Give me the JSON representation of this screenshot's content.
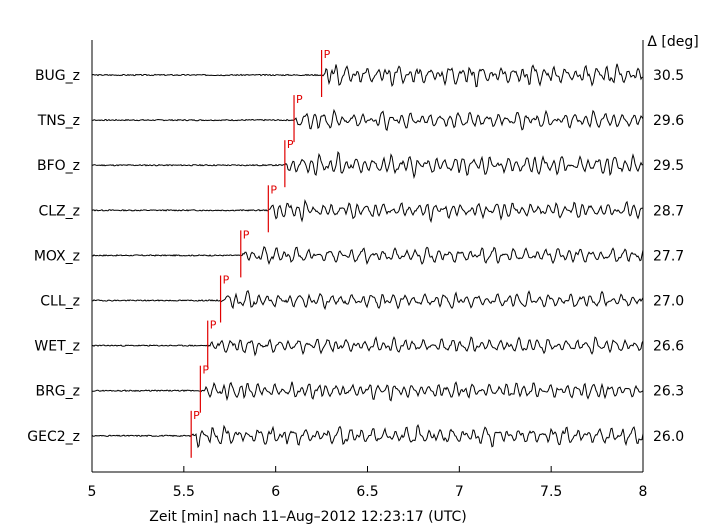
{
  "chart_data": {
    "type": "line",
    "xlabel": "Zeit [min] nach 11–Aug–2012 12:23:17 (UTC)",
    "right_axis_label": "Δ [deg]",
    "xlim": [
      5,
      8
    ],
    "x_ticks": [
      "5",
      "5.5",
      "6",
      "6.5",
      "7",
      "7.5",
      "8"
    ],
    "x_tick_values": [
      5,
      5.5,
      6,
      6.5,
      7,
      7.5,
      8
    ],
    "pick_label": "P",
    "pick_color": "#e00000",
    "trace_color": "#000000",
    "series": [
      {
        "name": "BUG_z",
        "distance": "30.5",
        "p_time": 6.25,
        "amp": 1.0,
        "seed": 3
      },
      {
        "name": "TNS_z",
        "distance": "29.6",
        "p_time": 6.1,
        "amp": 0.85,
        "seed": 7
      },
      {
        "name": "BFO_z",
        "distance": "29.5",
        "p_time": 6.05,
        "amp": 1.0,
        "seed": 11
      },
      {
        "name": "CLZ_z",
        "distance": "28.7",
        "p_time": 5.96,
        "amp": 0.8,
        "seed": 13
      },
      {
        "name": "MOX_z",
        "distance": "27.7",
        "p_time": 5.81,
        "amp": 0.8,
        "seed": 17
      },
      {
        "name": "CLL_z",
        "distance": "27.0",
        "p_time": 5.7,
        "amp": 0.75,
        "seed": 19
      },
      {
        "name": "WET_z",
        "distance": "26.6",
        "p_time": 5.63,
        "amp": 0.75,
        "seed": 23
      },
      {
        "name": "BRG_z",
        "distance": "26.3",
        "p_time": 5.59,
        "amp": 0.8,
        "seed": 29
      },
      {
        "name": "GEC2_z",
        "distance": "26.0",
        "p_time": 5.54,
        "amp": 0.9,
        "seed": 31
      }
    ]
  }
}
